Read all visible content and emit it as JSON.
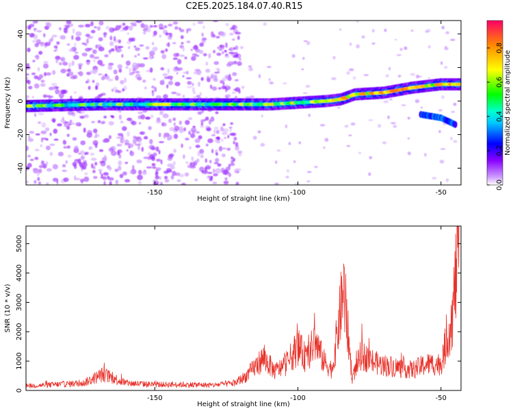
{
  "title": "C2E5.2025.184.07.40.R15",
  "chart_data": [
    {
      "type": "heatmap",
      "xlabel": "Height of straight line (km)",
      "ylabel": "Frequency (Hz)",
      "xlim": [
        -195,
        -43
      ],
      "ylim": [
        -50,
        48
      ],
      "xticks": [
        -150,
        -100,
        -50
      ],
      "yticks": [
        -40,
        -20,
        0,
        20,
        40
      ],
      "colorbar": {
        "label": "Normalized spectral amplitude",
        "range": [
          0.0,
          0.96
        ],
        "ticks": [
          0.0,
          0.2,
          0.4,
          0.6,
          0.8
        ]
      },
      "ridge": {
        "description": "main frequency track",
        "points": [
          {
            "x": -195,
            "y": -3
          },
          {
            "x": -170,
            "y": -2
          },
          {
            "x": -150,
            "y": -2
          },
          {
            "x": -130,
            "y": -2
          },
          {
            "x": -120,
            "y": -2
          },
          {
            "x": -110,
            "y": -2
          },
          {
            "x": -100,
            "y": -1
          },
          {
            "x": -90,
            "y": 0
          },
          {
            "x": -85,
            "y": 1
          },
          {
            "x": -80,
            "y": 4
          },
          {
            "x": -70,
            "y": 5
          },
          {
            "x": -60,
            "y": 8
          },
          {
            "x": -50,
            "y": 10
          },
          {
            "x": -45,
            "y": 10
          }
        ]
      },
      "secondary_track": {
        "description": "weaker branch near upper end",
        "points": [
          {
            "x": -57,
            "y": -8
          },
          {
            "x": -50,
            "y": -10
          },
          {
            "x": -45,
            "y": -14
          }
        ]
      },
      "noise_scatter_region": {
        "x": [
          -195,
          -120
        ],
        "y": [
          -50,
          48
        ]
      }
    },
    {
      "type": "line",
      "xlabel": "Height of straight line (km)",
      "ylabel": "SNR (10 * v/v)",
      "xlim": [
        -195,
        -43
      ],
      "ylim": [
        0,
        5600
      ],
      "xticks": [
        -150,
        -100,
        -50
      ],
      "yticks": [
        0,
        1000,
        2000,
        3000,
        4000,
        5000
      ],
      "color": "#e8322a",
      "series": [
        {
          "values": [
            {
              "x": -195,
              "y": 150
            },
            {
              "x": -185,
              "y": 200
            },
            {
              "x": -175,
              "y": 250
            },
            {
              "x": -168,
              "y": 550
            },
            {
              "x": -160,
              "y": 250
            },
            {
              "x": -150,
              "y": 200
            },
            {
              "x": -140,
              "y": 200
            },
            {
              "x": -130,
              "y": 180
            },
            {
              "x": -122,
              "y": 250
            },
            {
              "x": -118,
              "y": 500
            },
            {
              "x": -112,
              "y": 1100
            },
            {
              "x": -108,
              "y": 650
            },
            {
              "x": -104,
              "y": 900
            },
            {
              "x": -100,
              "y": 1500
            },
            {
              "x": -97,
              "y": 1050
            },
            {
              "x": -94,
              "y": 1700
            },
            {
              "x": -91,
              "y": 1000
            },
            {
              "x": -88,
              "y": 700
            },
            {
              "x": -84,
              "y": 3500
            },
            {
              "x": -81,
              "y": 400
            },
            {
              "x": -78,
              "y": 1200
            },
            {
              "x": -72,
              "y": 900
            },
            {
              "x": -66,
              "y": 800
            },
            {
              "x": -60,
              "y": 700
            },
            {
              "x": -55,
              "y": 900
            },
            {
              "x": -50,
              "y": 900
            },
            {
              "x": -46,
              "y": 2500
            },
            {
              "x": -43.5,
              "y": 5500
            }
          ]
        }
      ]
    }
  ]
}
